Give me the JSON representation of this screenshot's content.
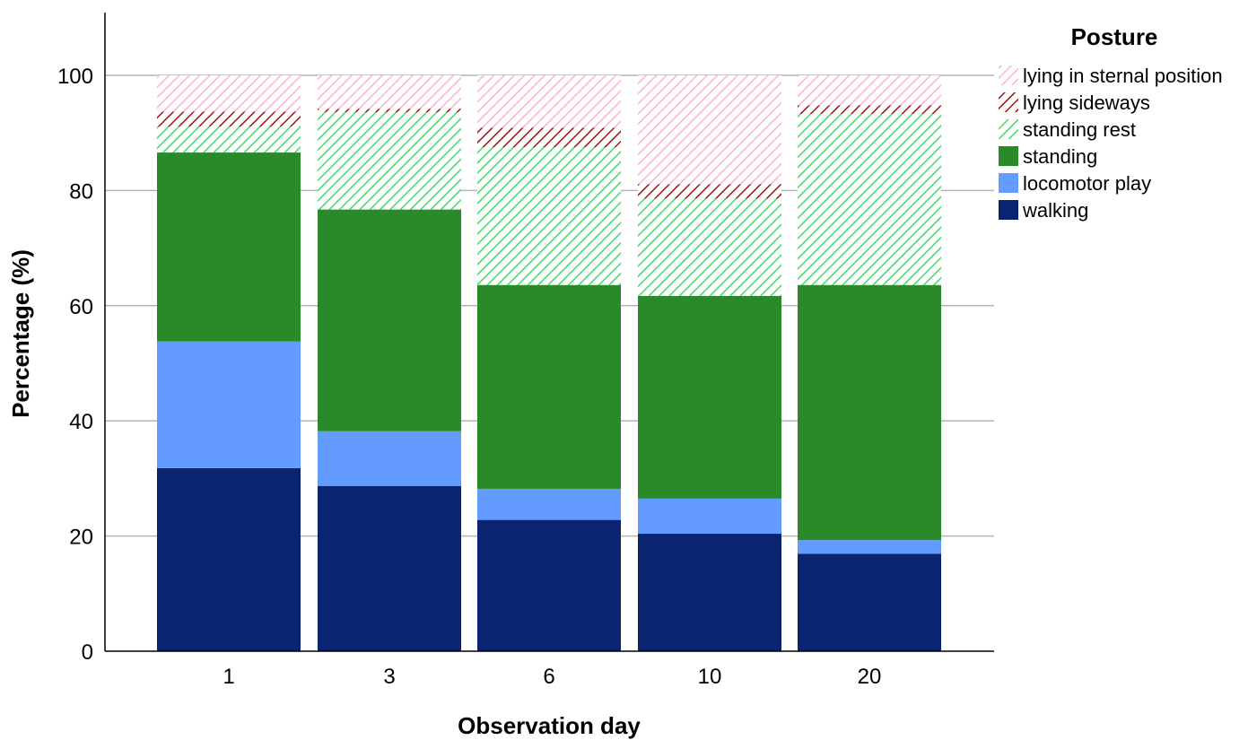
{
  "chart_data": {
    "type": "bar",
    "stacked": true,
    "xlabel": "Observation day",
    "ylabel": "Percentage (%)",
    "ylim": [
      0,
      110
    ],
    "yticks": [
      0,
      20,
      40,
      60,
      80,
      100
    ],
    "grid": true,
    "categories": [
      "1",
      "3",
      "6",
      "10",
      "20"
    ],
    "legend": {
      "title": "Posture",
      "placement": "top-right"
    },
    "series": [
      {
        "name": "walking",
        "color": "#0a246f",
        "pattern": "solid",
        "values": [
          31.8,
          28.7,
          22.8,
          20.4,
          16.9
        ]
      },
      {
        "name": "locomotor play",
        "color": "#649bff",
        "pattern": "solid",
        "values": [
          22.0,
          9.5,
          5.4,
          6.1,
          2.4
        ]
      },
      {
        "name": "standing",
        "color": "#2a8a2a",
        "pattern": "solid",
        "values": [
          32.8,
          38.5,
          35.4,
          35.2,
          44.3
        ]
      },
      {
        "name": "standing rest",
        "color": "#3ddc6a",
        "pattern": "hatch",
        "values": [
          4.5,
          16.9,
          23.9,
          16.9,
          29.7
        ]
      },
      {
        "name": "lying sideways",
        "color": "#a01010",
        "pattern": "hatch",
        "values": [
          2.6,
          0.6,
          3.4,
          2.5,
          1.5
        ]
      },
      {
        "name": "lying in sternal position",
        "color": "#ffb0d0",
        "pattern": "hatch",
        "values": [
          6.3,
          5.8,
          9.1,
          18.9,
          5.2
        ]
      }
    ]
  }
}
